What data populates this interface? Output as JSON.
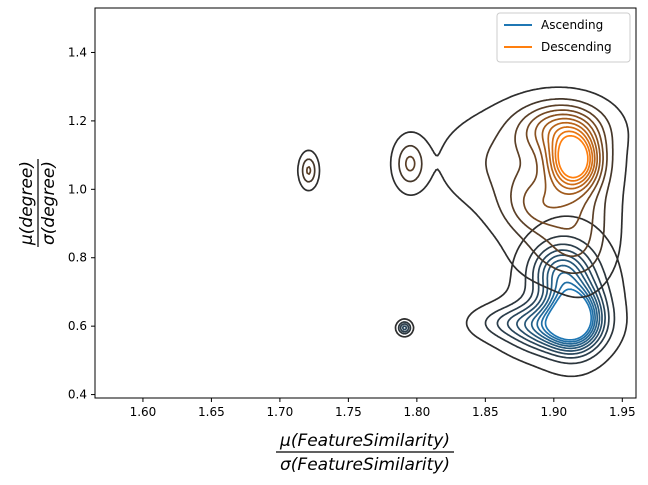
{
  "chart_data": {
    "type": "contour",
    "title": "",
    "xlabel_numerator": "μ(FeatureSimilarity)",
    "xlabel_denominator": "σ(FeatureSimilarity)",
    "ylabel_numerator": "μ(degree)",
    "ylabel_denominator": "σ(degree)",
    "xlim": [
      1.565,
      1.96
    ],
    "ylim": [
      0.39,
      1.53
    ],
    "xticks": [
      1.6,
      1.65,
      1.7,
      1.75,
      1.8,
      1.85,
      1.9,
      1.95
    ],
    "xtick_labels": [
      "1.60",
      "1.65",
      "1.70",
      "1.75",
      "1.80",
      "1.85",
      "1.90",
      "1.95"
    ],
    "yticks": [
      0.4,
      0.6,
      0.8,
      1.0,
      1.2,
      1.4
    ],
    "ytick_labels": [
      "0.4",
      "0.6",
      "0.8",
      "1.0",
      "1.2",
      "1.4"
    ],
    "grid": false,
    "legend_position": "top-right",
    "series": [
      {
        "name": "Ascending",
        "color": "#1f77b4",
        "mode": {
          "x": 1.915,
          "y": 0.63
        },
        "contour_levels": 10,
        "islands": [
          {
            "x": 1.791,
            "y": 0.595
          }
        ]
      },
      {
        "name": "Descending",
        "color": "#ff7f0e",
        "mode": {
          "x": 1.915,
          "y": 1.085
        },
        "contour_levels": 10,
        "islands": [
          {
            "x": 1.721,
            "y": 1.055
          },
          {
            "x": 1.795,
            "y": 1.075
          }
        ]
      }
    ]
  }
}
